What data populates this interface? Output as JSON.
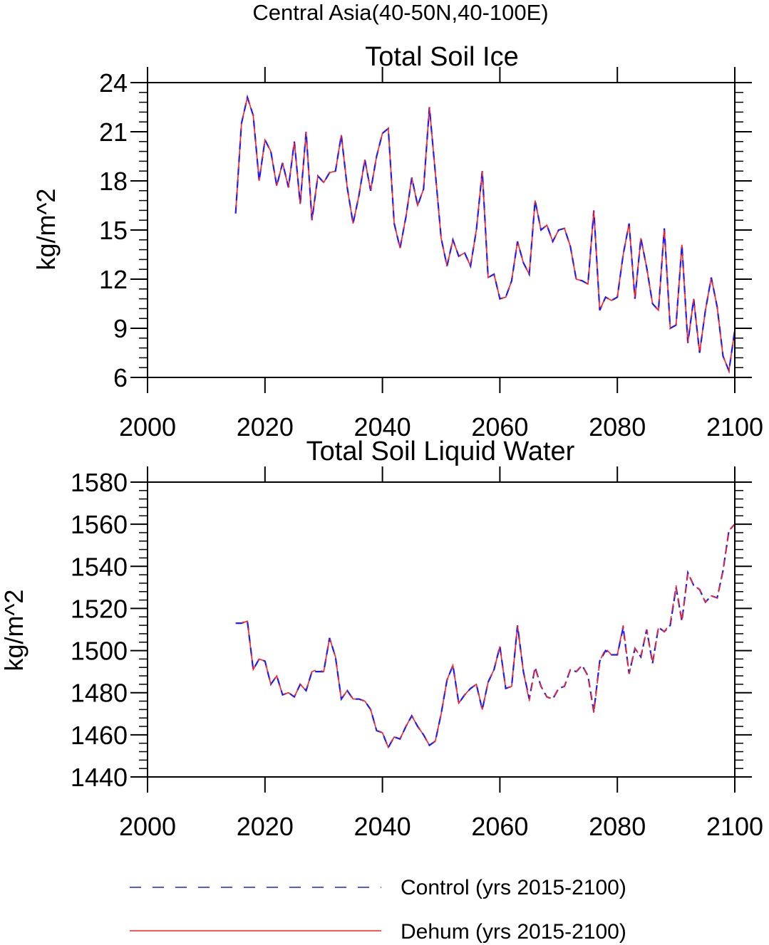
{
  "page_title": "Central Asia(40-50N,40-100E)",
  "colors": {
    "control": "#1a1aff",
    "dehum": "#ff2020",
    "axis": "#000000"
  },
  "chart_data": [
    {
      "type": "line",
      "title": "Total Soil Ice",
      "xlabel": "",
      "ylabel": "kg/m^2",
      "xlim": [
        2000,
        2100
      ],
      "ylim": [
        6,
        24
      ],
      "x_ticks": [
        2000,
        2020,
        2040,
        2060,
        2080,
        2100
      ],
      "y_ticks": [
        6,
        9,
        12,
        15,
        18,
        21,
        24
      ],
      "x_tick_labels": [
        "2000",
        "2020",
        "2040",
        "2060",
        "2080",
        "2100"
      ],
      "y_tick_labels": [
        "6",
        "9",
        "12",
        "15",
        "18",
        "21",
        "24"
      ],
      "x_start": 2015,
      "series": [
        {
          "name": "Control (yrs 2015-2100)",
          "values": [
            16.0,
            21.5,
            23.1,
            22.0,
            18.0,
            20.5,
            19.8,
            17.7,
            19.1,
            17.6,
            20.4,
            16.6,
            21.0,
            15.6,
            18.3,
            17.9,
            18.5,
            18.6,
            20.8,
            17.6,
            15.4,
            17.1,
            19.3,
            17.4,
            19.5,
            20.9,
            21.2,
            15.4,
            13.9,
            15.8,
            18.2,
            16.5,
            17.5,
            22.5,
            18.5,
            14.5,
            12.8,
            14.4,
            13.4,
            13.6,
            12.8,
            15.0,
            18.6,
            12.1,
            12.3,
            10.8,
            10.9,
            11.9,
            14.3,
            13.0,
            12.3,
            16.8,
            15.0,
            15.3,
            14.3,
            15.0,
            15.1,
            14.0,
            12.0,
            11.9,
            11.7,
            16.2,
            10.1,
            10.9,
            10.7,
            10.9,
            13.5,
            15.4,
            10.8,
            14.5,
            12.7,
            10.5,
            10.1,
            15.1,
            9.0,
            9.2,
            14.1,
            8.1,
            10.8,
            7.5,
            10.1,
            12.1,
            10.3,
            7.3,
            6.4,
            8.9
          ]
        },
        {
          "name": "Dehum (yrs 2015-2100)",
          "values": [
            16.0,
            21.5,
            23.1,
            22.0,
            18.0,
            20.5,
            19.8,
            17.7,
            19.1,
            17.6,
            20.4,
            16.6,
            21.0,
            15.6,
            18.3,
            17.9,
            18.5,
            18.6,
            20.8,
            17.6,
            15.4,
            17.1,
            19.3,
            17.4,
            19.5,
            20.9,
            21.2,
            15.4,
            13.9,
            15.8,
            18.2,
            16.5,
            17.5,
            22.5,
            18.5,
            14.5,
            12.8,
            14.4,
            13.4,
            13.6,
            12.8,
            15.0,
            18.6,
            12.1,
            12.3,
            10.8,
            10.9,
            11.9,
            14.3,
            13.0,
            12.3,
            16.8,
            15.0,
            15.3,
            14.3,
            15.0,
            15.1,
            14.0,
            12.0,
            11.9,
            11.7,
            16.2,
            10.1,
            10.9,
            10.7,
            10.9,
            13.5,
            15.4,
            10.8,
            14.5,
            12.7,
            10.5,
            10.1,
            15.1,
            9.0,
            9.2,
            14.1,
            8.1,
            10.8,
            7.5,
            10.1,
            12.1,
            10.3,
            7.3,
            6.4,
            8.9
          ]
        }
      ]
    },
    {
      "type": "line",
      "title": "Total Soil Liquid Water",
      "xlabel": "",
      "ylabel": "kg/m^2",
      "xlim": [
        2000,
        2100
      ],
      "ylim": [
        1440,
        1580
      ],
      "x_ticks": [
        2000,
        2020,
        2040,
        2060,
        2080,
        2100
      ],
      "y_ticks": [
        1440,
        1460,
        1480,
        1500,
        1520,
        1540,
        1560,
        1580
      ],
      "x_tick_labels": [
        "2000",
        "2020",
        "2040",
        "2060",
        "2080",
        "2100"
      ],
      "y_tick_labels": [
        "1440",
        "1460",
        "1480",
        "1500",
        "1520",
        "1540",
        "1560",
        "1580"
      ],
      "x_start": 2015,
      "series": [
        {
          "name": "Control (yrs 2015-2100)",
          "values": [
            1513,
            1513,
            1514,
            1491,
            1496,
            1495,
            1484,
            1488,
            1479,
            1480,
            1478,
            1484,
            1481,
            1490,
            1490,
            1490,
            1506,
            1497,
            1477,
            1481,
            1477,
            1477,
            1476,
            1472,
            1462,
            1461,
            1454,
            1459,
            1458,
            1464,
            1469,
            1464,
            1460,
            1455,
            1457,
            1470,
            1486,
            1493,
            1475,
            1479,
            1482,
            1484,
            1472,
            1485,
            1491,
            1502,
            1482,
            1483,
            1512,
            1490,
            1477,
            1492,
            1483,
            1478,
            1477,
            1482,
            1483,
            1491,
            1490,
            1493,
            1488,
            1471,
            1495,
            1500,
            1498,
            1498,
            1511,
            1489,
            1501,
            1497,
            1510,
            1494,
            1511,
            1509,
            1512,
            1530,
            1514,
            1537,
            1531,
            1529,
            1523,
            1526,
            1525,
            1538,
            1557,
            1560
          ]
        },
        {
          "name": "Dehum (yrs 2015-2100)",
          "values": [
            1513,
            1513,
            1514,
            1491,
            1496,
            1495,
            1484,
            1488,
            1479,
            1480,
            1478,
            1484,
            1481,
            1490,
            1491,
            1490,
            1506,
            1497,
            1477,
            1481,
            1477,
            1477,
            1476,
            1472,
            1462,
            1461,
            1454,
            1459,
            1458,
            1464,
            1469,
            1464,
            1460,
            1455,
            1457,
            1470,
            1486,
            1493,
            1475,
            1479,
            1482,
            1484,
            1472,
            1485,
            1491,
            1502,
            1482,
            1483,
            1512,
            1490,
            1476,
            1492,
            1483,
            1478,
            1477,
            1482,
            1483,
            1491,
            1490,
            1493,
            1488,
            1470,
            1495,
            1501,
            1498,
            1498,
            1512,
            1489,
            1501,
            1497,
            1510,
            1494,
            1511,
            1509,
            1513,
            1531,
            1514,
            1537,
            1531,
            1529,
            1523,
            1526,
            1525,
            1538,
            1557,
            1560
          ]
        }
      ]
    }
  ],
  "legend": {
    "control_label": "Control (yrs 2015-2100)",
    "dehum_label": "Dehum (yrs 2015-2100)"
  }
}
